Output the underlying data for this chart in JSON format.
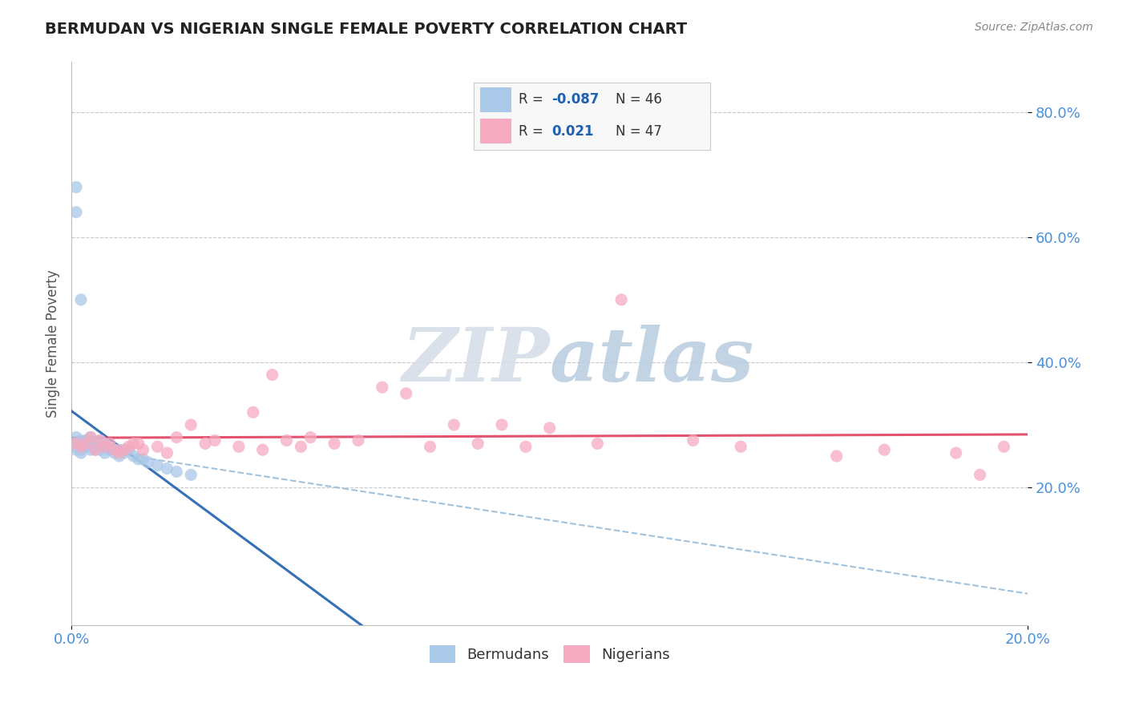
{
  "title": "BERMUDAN VS NIGERIAN SINGLE FEMALE POVERTY CORRELATION CHART",
  "source": "Source: ZipAtlas.com",
  "ylabel": "Single Female Poverty",
  "xlim": [
    0.0,
    0.2
  ],
  "ylim": [
    -0.02,
    0.88
  ],
  "bermudan_R": -0.087,
  "bermudan_N": 46,
  "nigerian_R": 0.021,
  "nigerian_N": 47,
  "blue_fill": "#aac8e8",
  "pink_fill": "#f5aabf",
  "blue_line_color": "#2060b0",
  "pink_line_color": "#e04060",
  "blue_dash_color": "#90b8d8",
  "watermark_color": "#d4dce8",
  "legend_box_color": "#f8f8f8",
  "grid_color": "#c8c8c8",
  "title_color": "#222222",
  "axis_tick_color": "#4a90d9",
  "ylabel_color": "#555555",
  "bermuda_x": [
    0.001,
    0.001,
    0.001,
    0.001,
    0.002,
    0.002,
    0.002,
    0.002,
    0.002,
    0.003,
    0.003,
    0.003,
    0.003,
    0.004,
    0.004,
    0.004,
    0.004,
    0.005,
    0.005,
    0.005,
    0.005,
    0.006,
    0.006,
    0.006,
    0.007,
    0.007,
    0.007,
    0.008,
    0.008,
    0.009,
    0.009,
    0.01,
    0.01,
    0.011,
    0.012,
    0.013,
    0.014,
    0.015,
    0.016,
    0.018,
    0.02,
    0.022,
    0.025,
    0.001,
    0.001,
    0.002
  ],
  "bermuda_y": [
    0.27,
    0.28,
    0.265,
    0.26,
    0.27,
    0.275,
    0.265,
    0.26,
    0.255,
    0.27,
    0.275,
    0.27,
    0.265,
    0.28,
    0.27,
    0.265,
    0.26,
    0.27,
    0.265,
    0.26,
    0.27,
    0.275,
    0.265,
    0.26,
    0.27,
    0.265,
    0.255,
    0.265,
    0.26,
    0.26,
    0.255,
    0.25,
    0.26,
    0.255,
    0.26,
    0.25,
    0.245,
    0.245,
    0.24,
    0.235,
    0.23,
    0.225,
    0.22,
    0.64,
    0.68,
    0.5
  ],
  "nigerian_x": [
    0.001,
    0.002,
    0.003,
    0.004,
    0.005,
    0.006,
    0.007,
    0.008,
    0.009,
    0.01,
    0.011,
    0.012,
    0.013,
    0.014,
    0.015,
    0.018,
    0.02,
    0.022,
    0.025,
    0.028,
    0.03,
    0.035,
    0.038,
    0.04,
    0.042,
    0.045,
    0.048,
    0.05,
    0.055,
    0.06,
    0.065,
    0.07,
    0.075,
    0.08,
    0.085,
    0.09,
    0.095,
    0.1,
    0.11,
    0.115,
    0.13,
    0.14,
    0.16,
    0.17,
    0.185,
    0.19,
    0.195
  ],
  "nigerian_y": [
    0.27,
    0.265,
    0.27,
    0.28,
    0.26,
    0.275,
    0.265,
    0.27,
    0.26,
    0.255,
    0.26,
    0.265,
    0.27,
    0.27,
    0.26,
    0.265,
    0.255,
    0.28,
    0.3,
    0.27,
    0.275,
    0.265,
    0.32,
    0.26,
    0.38,
    0.275,
    0.265,
    0.28,
    0.27,
    0.275,
    0.36,
    0.35,
    0.265,
    0.3,
    0.27,
    0.3,
    0.265,
    0.295,
    0.27,
    0.5,
    0.275,
    0.265,
    0.25,
    0.26,
    0.255,
    0.22,
    0.265
  ]
}
